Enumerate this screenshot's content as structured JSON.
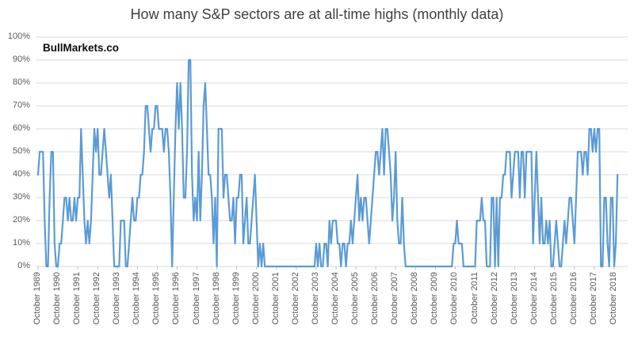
{
  "title": "How many S&P sectors are at all-time highs (monthly data)",
  "watermark": "BullMarkets.co",
  "colors": {
    "line": "#5B9BD5",
    "gridline": "#D9D9D9",
    "tick": "#BFBFBF",
    "axis_text": "#595959",
    "title_text": "#404040"
  },
  "chart_data": {
    "type": "line",
    "title": "How many S&P sectors are at all-time highs (monthly data)",
    "xlabel": "",
    "ylabel": "",
    "unit": "%",
    "frequency": "monthly",
    "series_start": "October 1989",
    "series_end": "December 2018",
    "ylim": [
      0,
      100
    ],
    "grid": "horizontal",
    "legend": "none",
    "y_tick_labels_top_down": [
      "100%",
      "90%",
      "80%",
      "70%",
      "60%",
      "50%",
      "40%",
      "30%",
      "20%",
      "10%",
      "0%"
    ],
    "x_tick_interval_months": 12,
    "x_tick_labels": [
      "October 1989",
      "October 1990",
      "October 1991",
      "October 1992",
      "October 1993",
      "October 1994",
      "October 1995",
      "October 1996",
      "October 1997",
      "October 1998",
      "October 1999",
      "October 2000",
      "October 2001",
      "October 2002",
      "October 2003",
      "October 2004",
      "October 2005",
      "October 2006",
      "October 2007",
      "October 2008",
      "October 2009",
      "October 2010",
      "October 2011",
      "October 2012",
      "October 2013",
      "October 2014",
      "October 2015",
      "October 2016",
      "October 2017",
      "October 2018"
    ],
    "values_by_year_pct": {
      "1989": [
        40,
        50,
        50
      ],
      "1990": [
        50,
        20,
        0,
        0,
        30,
        50,
        50,
        10,
        0,
        0,
        10,
        10
      ],
      "1991": [
        20,
        30,
        30,
        20,
        30,
        20,
        20,
        30,
        20,
        30,
        30,
        60
      ],
      "1992": [
        40,
        20,
        10,
        20,
        10,
        20,
        40,
        60,
        50,
        60,
        40,
        40
      ],
      "1993": [
        50,
        60,
        50,
        40,
        30,
        40,
        20,
        0,
        0,
        0,
        0,
        20
      ],
      "1994": [
        20,
        20,
        0,
        0,
        10,
        20,
        30,
        20,
        20,
        30,
        30,
        40
      ],
      "1995": [
        40,
        50,
        70,
        70,
        60,
        50,
        60,
        60,
        70,
        70,
        60,
        60
      ],
      "1996": [
        60,
        50,
        60,
        60,
        50,
        30,
        0,
        30,
        60,
        80,
        60,
        80
      ],
      "1997": [
        60,
        30,
        30,
        50,
        90,
        90,
        40,
        20,
        30,
        20,
        50,
        20
      ],
      "1998": [
        40,
        70,
        80,
        60,
        40,
        40,
        30,
        10,
        30,
        0,
        60,
        60
      ],
      "1999": [
        60,
        30,
        40,
        40,
        30,
        20,
        20,
        30,
        10,
        30,
        30,
        40
      ],
      "2000": [
        40,
        10,
        20,
        30,
        10,
        10,
        20,
        30,
        40,
        20,
        0,
        10
      ],
      "2001": [
        0,
        10,
        0,
        0,
        0,
        0,
        0,
        0,
        0,
        0,
        0,
        0
      ],
      "2002": [
        0,
        0,
        0,
        0,
        0,
        0,
        0,
        0,
        0,
        0,
        0,
        0
      ],
      "2003": [
        0,
        0,
        0,
        0,
        0,
        0,
        0,
        0,
        0,
        10,
        0,
        10
      ],
      "2004": [
        0,
        0,
        10,
        10,
        0,
        20,
        10,
        20,
        20,
        20,
        10,
        10
      ],
      "2005": [
        0,
        10,
        10,
        0,
        10,
        10,
        20,
        10,
        20,
        30,
        40,
        20
      ],
      "2006": [
        30,
        20,
        30,
        30,
        20,
        10,
        20,
        30,
        40,
        50,
        50,
        40
      ],
      "2007": [
        50,
        60,
        40,
        60,
        60,
        50,
        40,
        20,
        30,
        50,
        20,
        10
      ],
      "2008": [
        10,
        30,
        10,
        0,
        0,
        0,
        0,
        0,
        0,
        0,
        0,
        0
      ],
      "2009": [
        0,
        0,
        0,
        0,
        0,
        0,
        0,
        0,
        0,
        0,
        0,
        0
      ],
      "2010": [
        0,
        0,
        0,
        0,
        0,
        0,
        0,
        0,
        10,
        10,
        20,
        10
      ],
      "2011": [
        10,
        10,
        0,
        0,
        0,
        0,
        0,
        0,
        0,
        0,
        20,
        20
      ],
      "2012": [
        20,
        30,
        20,
        20,
        0,
        0,
        0,
        30,
        30,
        0,
        30,
        0
      ],
      "2013": [
        30,
        30,
        40,
        40,
        50,
        50,
        50,
        30,
        40,
        50,
        50,
        50
      ],
      "2014": [
        30,
        50,
        50,
        30,
        50,
        50,
        50,
        50,
        10,
        30,
        50,
        30
      ],
      "2015": [
        10,
        30,
        10,
        10,
        20,
        10,
        20,
        0,
        0,
        10,
        20,
        10
      ],
      "2016": [
        0,
        0,
        10,
        20,
        10,
        20,
        30,
        30,
        20,
        10,
        30,
        50
      ],
      "2017": [
        50,
        50,
        40,
        50,
        50,
        40,
        60,
        60,
        50,
        60,
        50,
        60
      ],
      "2018": [
        60,
        0,
        0,
        30,
        30,
        10,
        0,
        30,
        30,
        0,
        10,
        40
      ]
    }
  }
}
